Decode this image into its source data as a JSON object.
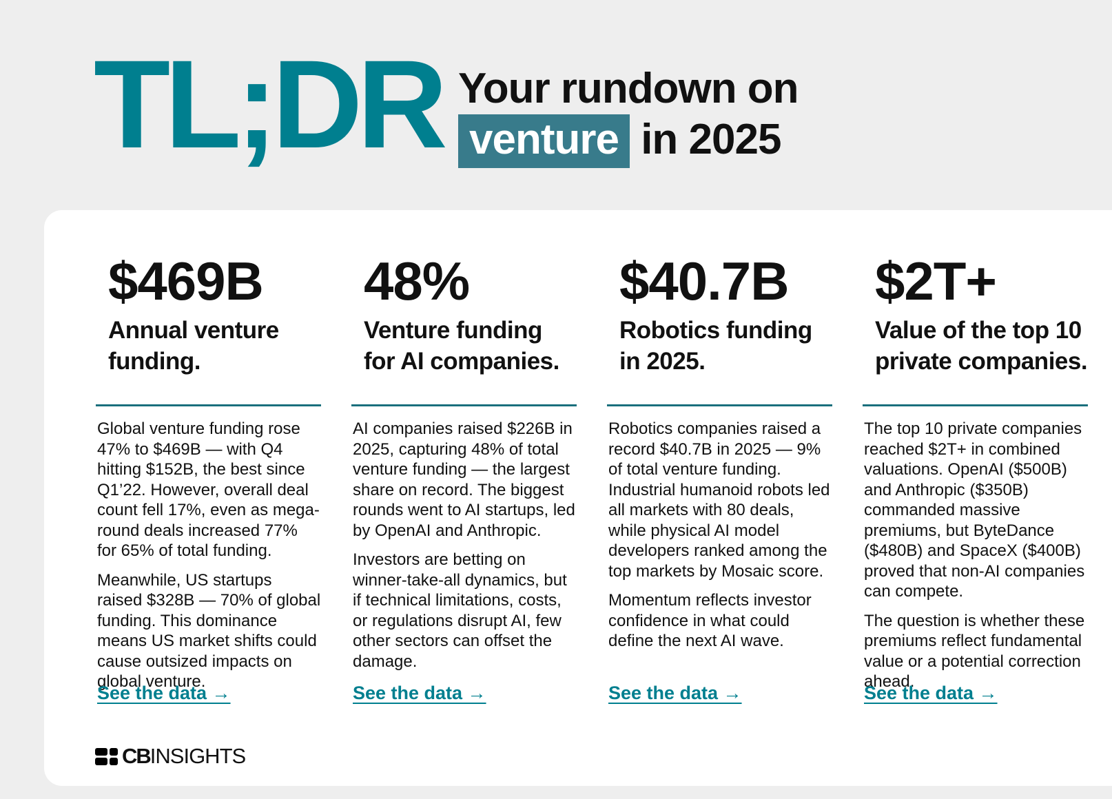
{
  "header": {
    "tldr": "TL;DR",
    "line1": "Your rundown on",
    "highlight": "venture",
    "line2_rest": "in 2025"
  },
  "columns": [
    {
      "stat": "$469B",
      "subtitle_1": "Annual venture",
      "subtitle_2": "funding.",
      "paragraphs": [
        "Global venture funding rose 47% to $469B — with Q4 hitting $152B, the best since Q1’22. However, overall deal count fell 17%, even as mega-round deals increased 77% for 65% of total funding.",
        "Meanwhile, US startups raised $328B — 70% of global funding. This dominance means US market shifts could cause outsized impacts on global venture."
      ],
      "link": "See the data →"
    },
    {
      "stat": "48%",
      "subtitle_1": "Venture funding",
      "subtitle_2": "for AI companies.",
      "paragraphs": [
        "AI companies raised $226B in 2025, capturing 48% of total venture funding — the largest share on record. The biggest rounds went to AI startups, led by OpenAI and Anthropic.",
        "Investors are betting on winner-take-all dynamics, but if technical limitations, costs, or regulations disrupt AI, few other sectors can offset the damage."
      ],
      "link": "See the data →"
    },
    {
      "stat": "$40.7B",
      "subtitle_1": "Robotics funding",
      "subtitle_2": "in 2025.",
      "paragraphs": [
        "Robotics companies raised a record $40.7B in 2025 — 9% of total venture funding. Industrial humanoid robots led all markets with 80 deals, while physical AI model developers ranked among the top markets by Mosaic score.",
        "Momentum reflects investor confidence in what could define the next AI wave."
      ],
      "link": "See the data →"
    },
    {
      "stat": "$2T+",
      "subtitle_1": "Value of the top 10",
      "subtitle_2": "private companies.",
      "paragraphs": [
        "The top 10 private companies reached $2T+ in combined valuations. OpenAI ($500B) and Anthropic ($350B) commanded massive premiums, but ByteDance ($480B) and SpaceX ($400B) proved that non-AI companies can compete.",
        "The question is whether these premiums reflect fundamental value or a potential correction ahead."
      ],
      "link": "See the data →"
    }
  ],
  "footer": {
    "logo": "CBINSIGHTS"
  }
}
